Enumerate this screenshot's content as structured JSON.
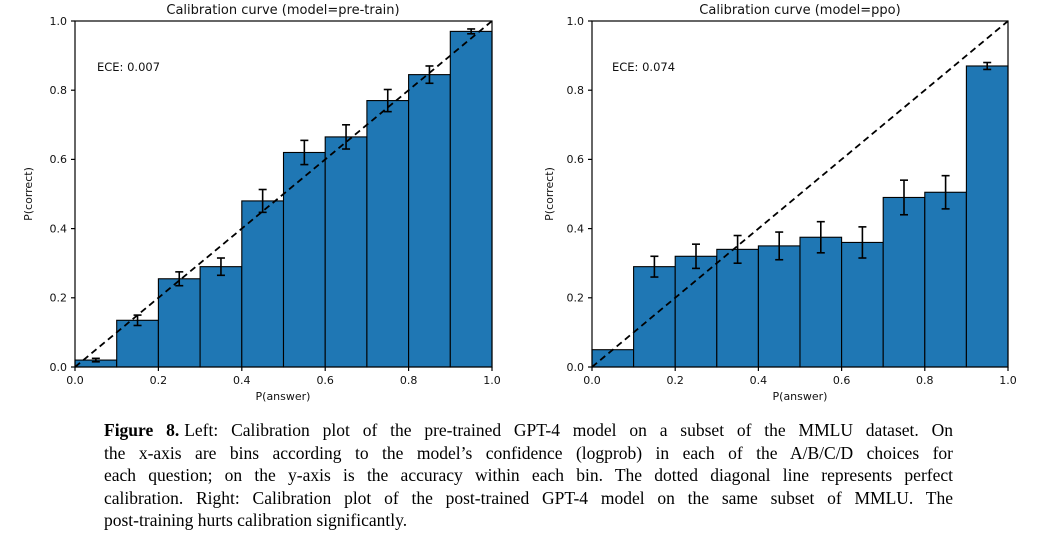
{
  "chart_data": [
    {
      "type": "bar",
      "title": "Calibration curve (model=pre-train)",
      "ece_label": "ECE: 0.007",
      "xlabel": "P(answer)",
      "ylabel": "P(correct)",
      "xlim": [
        0.0,
        1.0
      ],
      "ylim": [
        0.0,
        1.0
      ],
      "xticks": [
        "0.0",
        "0.2",
        "0.4",
        "0.6",
        "0.8",
        "1.0"
      ],
      "yticks": [
        "0.0",
        "0.2",
        "0.4",
        "0.6",
        "0.8",
        "1.0"
      ],
      "bin_edges": [
        0.0,
        0.1,
        0.2,
        0.3,
        0.4,
        0.5,
        0.6,
        0.7,
        0.8,
        0.9,
        1.0
      ],
      "values": [
        0.02,
        0.135,
        0.255,
        0.29,
        0.48,
        0.62,
        0.665,
        0.77,
        0.845,
        0.97
      ],
      "errors": [
        0.005,
        0.015,
        0.02,
        0.025,
        0.033,
        0.035,
        0.035,
        0.032,
        0.025,
        0.007
      ],
      "diagonal_line": true,
      "grid": false,
      "bar_color": "#1f77b4",
      "bar_edge_color": "#000000",
      "diagonal_style": "dashed"
    },
    {
      "type": "bar",
      "title": "Calibration curve (model=ppo)",
      "ece_label": "ECE: 0.074",
      "xlabel": "P(answer)",
      "ylabel": "P(correct)",
      "xlim": [
        0.0,
        1.0
      ],
      "ylim": [
        0.0,
        1.0
      ],
      "xticks": [
        "0.0",
        "0.2",
        "0.4",
        "0.6",
        "0.8",
        "1.0"
      ],
      "yticks": [
        "0.0",
        "0.2",
        "0.4",
        "0.6",
        "0.8",
        "1.0"
      ],
      "bin_edges": [
        0.0,
        0.1,
        0.2,
        0.3,
        0.4,
        0.5,
        0.6,
        0.7,
        0.8,
        0.9,
        1.0
      ],
      "values": [
        0.05,
        0.29,
        0.32,
        0.34,
        0.35,
        0.375,
        0.36,
        0.49,
        0.505,
        0.87
      ],
      "errors": [
        0,
        0.03,
        0.035,
        0.04,
        0.04,
        0.045,
        0.045,
        0.05,
        0.048,
        0.01
      ],
      "diagonal_line": true,
      "grid": false,
      "bar_color": "#1f77b4",
      "bar_edge_color": "#000000",
      "diagonal_style": "dashed"
    }
  ],
  "caption": {
    "label": "Figure 8.",
    "lines": [
      "Left: Calibration plot of the pre-trained GPT-4 model on a subset of the MMLU dataset. On",
      "the x-axis are bins according to the model’s confidence (logprob) in each of the A/B/C/D choices for",
      "each question; on the y-axis is the accuracy within each bin. The dotted diagonal line represents perfect",
      "calibration. Right: Calibration plot of the post-trained GPT-4 model on the same subset of MMLU. The",
      "post-training hurts calibration significantly."
    ]
  }
}
